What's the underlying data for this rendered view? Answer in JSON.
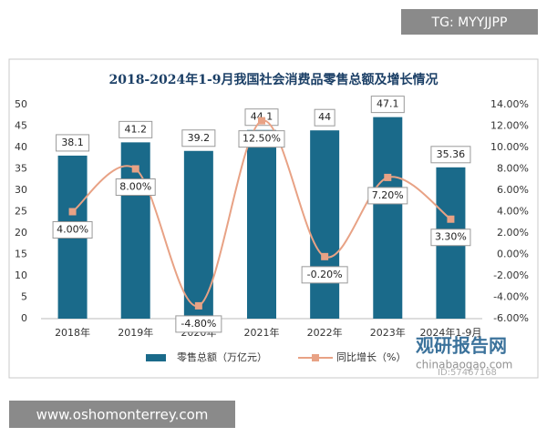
{
  "chart_data": {
    "type": "bar-line",
    "title": "2018-2024年1-9月我国社会消费品零售总额及增长情况",
    "categories": [
      "2018年",
      "2019年",
      "2020年",
      "2021年",
      "2022年",
      "2023年",
      "2024年1-9月"
    ],
    "series": [
      {
        "name": "零售总额（万亿元）",
        "type": "bar",
        "color": "#1a6a8a",
        "values": [
          38.1,
          41.2,
          39.2,
          44.1,
          44,
          47.1,
          35.36
        ]
      },
      {
        "name": "同比增长（%）",
        "type": "line",
        "axis": "y2",
        "color": "#e8a285",
        "values": [
          4,
          8,
          -4.8,
          12.5,
          -0.2,
          7.2,
          3.3
        ],
        "value_labels": [
          "4.00%",
          "8.00%",
          "-4.80%",
          "12.50%",
          "-0.20%",
          "7.20%",
          "3.30%"
        ]
      }
    ],
    "ylim": [
      0,
      50
    ],
    "yticks": [
      0,
      5,
      10,
      15,
      20,
      25,
      30,
      35,
      40,
      45,
      50
    ],
    "y2lim": [
      -6,
      14
    ],
    "y2ticks": [
      {
        "value": -6,
        "label": "-6.00%"
      },
      {
        "value": -4,
        "label": "-4.00%"
      },
      {
        "value": -2,
        "label": "-2.00%"
      },
      {
        "value": 0,
        "label": "0.00%"
      },
      {
        "value": 2,
        "label": "2.00%"
      },
      {
        "value": 4,
        "label": "4.00%"
      },
      {
        "value": 6,
        "label": "6.00%"
      },
      {
        "value": 8,
        "label": "8.00%"
      },
      {
        "value": 10,
        "label": "10.00%"
      },
      {
        "value": 12,
        "label": "12.00%"
      },
      {
        "value": 14,
        "label": "14.00%"
      }
    ],
    "legend": "bottom",
    "grid": false
  },
  "overlay": {
    "tag": "TG: MYYJJPP",
    "website": "www.oshomonterrey.com",
    "watermark": [
      "观研报告网",
      "chinabaogao.com",
      "ID:57467168"
    ]
  }
}
